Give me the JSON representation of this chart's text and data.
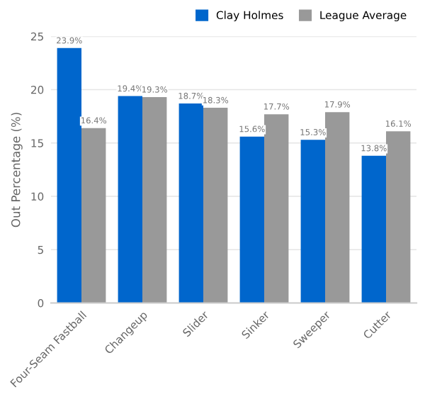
{
  "chart_data": {
    "type": "bar",
    "ylabel": "Out Percentage (%)",
    "categories": [
      "Four-Seam Fastball",
      "Changeup",
      "Slider",
      "Sinker",
      "Sweeper",
      "Cutter"
    ],
    "series": [
      {
        "name": "Clay Holmes",
        "color": "#0066cc",
        "values": [
          23.9,
          19.4,
          18.7,
          15.6,
          15.3,
          13.8
        ],
        "value_labels": [
          "23.9%",
          "19.4%",
          "18.7%",
          "15.6%",
          "15.3%",
          "13.8%"
        ]
      },
      {
        "name": "League Average",
        "color": "#999999",
        "values": [
          16.4,
          19.3,
          18.3,
          17.7,
          17.9,
          16.1
        ],
        "value_labels": [
          "16.4%",
          "19.3%",
          "18.3%",
          "17.7%",
          "17.9%",
          "16.1%"
        ]
      }
    ],
    "ylim": [
      0,
      25
    ],
    "yticks": [
      0,
      5,
      10,
      15,
      20,
      25
    ],
    "grid": "y",
    "legend": "top right"
  }
}
